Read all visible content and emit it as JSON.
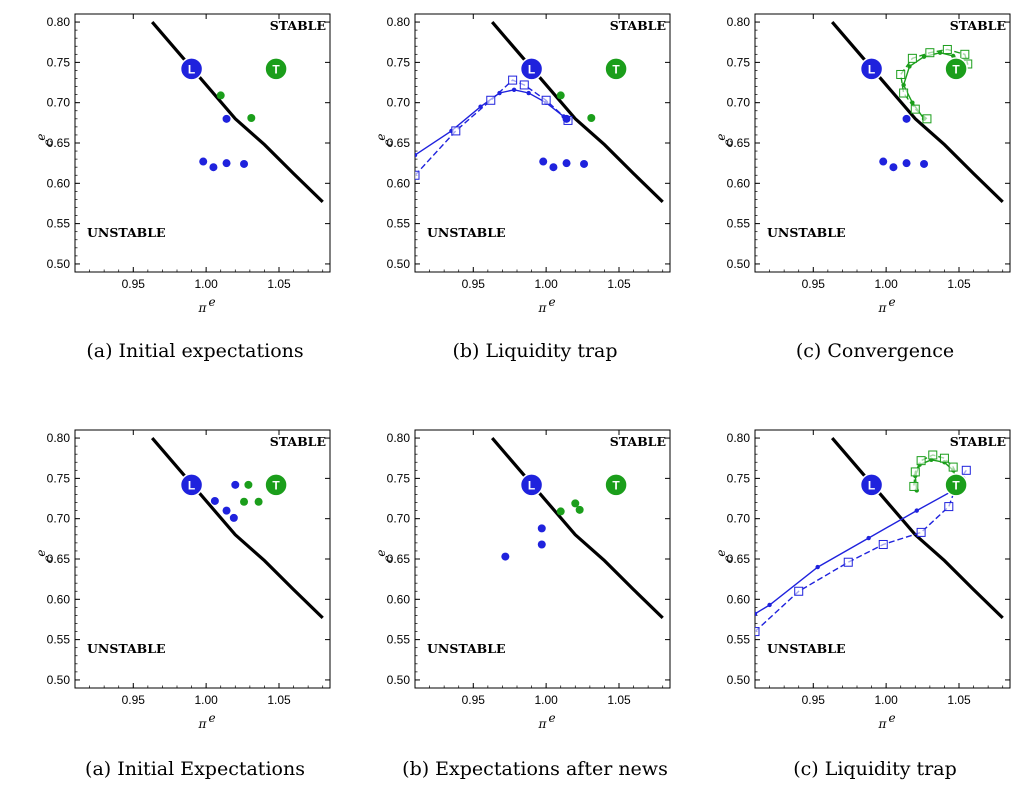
{
  "chart_data": [
    {
      "type": "scatter",
      "caption": "(a) Initial expectations",
      "xlabel": "π^e",
      "ylabel": "c^e",
      "xlim": [
        0.91,
        1.085
      ],
      "ylim": [
        0.49,
        0.81
      ],
      "xticks": [
        "0.95",
        "1.00",
        "1.05"
      ],
      "yticks": [
        "0.50",
        "0.55",
        "0.60",
        "0.65",
        "0.70",
        "0.75",
        "0.80"
      ],
      "region_labels": {
        "stable": "STABLE",
        "unstable": "UNSTABLE"
      },
      "boundary": [
        [
          0.963,
          0.8
        ],
        [
          1.02,
          0.68
        ],
        [
          1.04,
          0.648
        ],
        [
          1.06,
          0.612
        ],
        [
          1.08,
          0.577
        ]
      ],
      "markers": [
        {
          "label": "L",
          "x": 0.99,
          "y": 0.742,
          "color": "#1f22dd"
        },
        {
          "label": "T",
          "x": 1.048,
          "y": 0.742,
          "color": "#1b9e1b"
        }
      ],
      "points_blue": [
        [
          0.998,
          0.627
        ],
        [
          1.005,
          0.62
        ],
        [
          1.014,
          0.625
        ],
        [
          1.026,
          0.624
        ],
        [
          1.014,
          0.68
        ]
      ],
      "points_green": [
        [
          1.01,
          0.709
        ],
        [
          1.031,
          0.681
        ]
      ],
      "paths": []
    },
    {
      "type": "scatter",
      "caption": "(b) Liquidity trap",
      "xlabel": "π^e",
      "ylabel": "c^e",
      "xlim": [
        0.91,
        1.085
      ],
      "ylim": [
        0.49,
        0.81
      ],
      "xticks": [
        "0.95",
        "1.00",
        "1.05"
      ],
      "yticks": [
        "0.50",
        "0.55",
        "0.60",
        "0.65",
        "0.70",
        "0.75",
        "0.80"
      ],
      "region_labels": {
        "stable": "STABLE",
        "unstable": "UNSTABLE"
      },
      "boundary": [
        [
          0.963,
          0.8
        ],
        [
          1.02,
          0.68
        ],
        [
          1.04,
          0.648
        ],
        [
          1.06,
          0.612
        ],
        [
          1.08,
          0.577
        ]
      ],
      "markers": [
        {
          "label": "L",
          "x": 0.99,
          "y": 0.742,
          "color": "#1f22dd"
        },
        {
          "label": "T",
          "x": 1.048,
          "y": 0.742,
          "color": "#1b9e1b"
        }
      ],
      "points_blue": [
        [
          0.998,
          0.627
        ],
        [
          1.005,
          0.62
        ],
        [
          1.014,
          0.625
        ],
        [
          1.026,
          0.624
        ],
        [
          1.014,
          0.68
        ]
      ],
      "points_green": [
        [
          1.01,
          0.709
        ],
        [
          1.031,
          0.681
        ]
      ],
      "paths": [
        {
          "color": "#1f22dd",
          "dashed": false,
          "marker": "dot",
          "points": [
            [
              0.91,
              0.635
            ],
            [
              0.935,
              0.665
            ],
            [
              0.955,
              0.695
            ],
            [
              0.968,
              0.712
            ],
            [
              0.978,
              0.716
            ],
            [
              0.988,
              0.712
            ],
            [
              1.0,
              0.7
            ],
            [
              1.012,
              0.683
            ]
          ]
        },
        {
          "color": "#1f22dd",
          "dashed": true,
          "marker": "square",
          "points": [
            [
              0.91,
              0.61
            ],
            [
              0.938,
              0.665
            ],
            [
              0.962,
              0.703
            ],
            [
              0.977,
              0.728
            ],
            [
              0.985,
              0.722
            ],
            [
              1.0,
              0.703
            ],
            [
              1.015,
              0.678
            ]
          ]
        }
      ]
    },
    {
      "type": "scatter",
      "caption": "(c) Convergence",
      "xlabel": "π^e",
      "ylabel": "c^e",
      "xlim": [
        0.91,
        1.085
      ],
      "ylim": [
        0.49,
        0.81
      ],
      "xticks": [
        "0.95",
        "1.00",
        "1.05"
      ],
      "yticks": [
        "0.50",
        "0.55",
        "0.60",
        "0.65",
        "0.70",
        "0.75",
        "0.80"
      ],
      "region_labels": {
        "stable": "STABLE",
        "unstable": "UNSTABLE"
      },
      "boundary": [
        [
          0.963,
          0.8
        ],
        [
          1.02,
          0.68
        ],
        [
          1.04,
          0.648
        ],
        [
          1.06,
          0.612
        ],
        [
          1.08,
          0.577
        ]
      ],
      "markers": [
        {
          "label": "L",
          "x": 0.99,
          "y": 0.742,
          "color": "#1f22dd"
        },
        {
          "label": "T",
          "x": 1.048,
          "y": 0.742,
          "color": "#1b9e1b"
        }
      ],
      "points_blue": [
        [
          0.998,
          0.627
        ],
        [
          1.005,
          0.62
        ],
        [
          1.014,
          0.625
        ],
        [
          1.026,
          0.624
        ],
        [
          1.014,
          0.68
        ]
      ],
      "points_green": [],
      "paths": [
        {
          "color": "#1b9e1b",
          "dashed": false,
          "marker": "dot",
          "points": [
            [
              1.026,
              0.68
            ],
            [
              1.018,
              0.7
            ],
            [
              1.012,
              0.722
            ],
            [
              1.016,
              0.745
            ],
            [
              1.026,
              0.757
            ],
            [
              1.037,
              0.762
            ],
            [
              1.046,
              0.758
            ],
            [
              1.052,
              0.751
            ],
            [
              1.049,
              0.743
            ]
          ]
        },
        {
          "color": "#1b9e1b",
          "dashed": true,
          "marker": "square",
          "points": [
            [
              1.028,
              0.68
            ],
            [
              1.02,
              0.692
            ],
            [
              1.012,
              0.712
            ],
            [
              1.01,
              0.735
            ],
            [
              1.018,
              0.755
            ],
            [
              1.03,
              0.762
            ],
            [
              1.042,
              0.766
            ],
            [
              1.054,
              0.76
            ],
            [
              1.056,
              0.748
            ],
            [
              1.048,
              0.742
            ]
          ]
        }
      ]
    },
    {
      "type": "scatter",
      "caption": "(a) Initial Expectations",
      "xlabel": "π^e",
      "ylabel": "c^e",
      "xlim": [
        0.91,
        1.085
      ],
      "ylim": [
        0.49,
        0.81
      ],
      "xticks": [
        "0.95",
        "1.00",
        "1.05"
      ],
      "yticks": [
        "0.50",
        "0.55",
        "0.60",
        "0.65",
        "0.70",
        "0.75",
        "0.80"
      ],
      "region_labels": {
        "stable": "STABLE",
        "unstable": "UNSTABLE"
      },
      "boundary": [
        [
          0.963,
          0.8
        ],
        [
          1.02,
          0.68
        ],
        [
          1.04,
          0.648
        ],
        [
          1.06,
          0.612
        ],
        [
          1.08,
          0.577
        ]
      ],
      "markers": [
        {
          "label": "L",
          "x": 0.99,
          "y": 0.742,
          "color": "#1f22dd"
        },
        {
          "label": "T",
          "x": 1.048,
          "y": 0.742,
          "color": "#1b9e1b"
        }
      ],
      "points_blue": [
        [
          1.006,
          0.722
        ],
        [
          1.014,
          0.71
        ],
        [
          1.019,
          0.701
        ],
        [
          1.02,
          0.742
        ]
      ],
      "points_green": [
        [
          1.026,
          0.721
        ],
        [
          1.029,
          0.742
        ],
        [
          1.036,
          0.721
        ]
      ],
      "paths": []
    },
    {
      "type": "scatter",
      "caption": "(b) Expectations after news",
      "xlabel": "π^e",
      "ylabel": "c^e",
      "xlim": [
        0.91,
        1.085
      ],
      "ylim": [
        0.49,
        0.81
      ],
      "xticks": [
        "0.95",
        "1.00",
        "1.05"
      ],
      "yticks": [
        "0.50",
        "0.55",
        "0.60",
        "0.65",
        "0.70",
        "0.75",
        "0.80"
      ],
      "region_labels": {
        "stable": "STABLE",
        "unstable": "UNSTABLE"
      },
      "boundary": [
        [
          0.963,
          0.8
        ],
        [
          1.02,
          0.68
        ],
        [
          1.04,
          0.648
        ],
        [
          1.06,
          0.612
        ],
        [
          1.08,
          0.577
        ]
      ],
      "markers": [
        {
          "label": "L",
          "x": 0.99,
          "y": 0.742,
          "color": "#1f22dd"
        },
        {
          "label": "T",
          "x": 1.048,
          "y": 0.742,
          "color": "#1b9e1b"
        }
      ],
      "points_blue": [
        [
          0.972,
          0.653
        ],
        [
          0.997,
          0.688
        ],
        [
          0.997,
          0.668
        ]
      ],
      "points_green": [
        [
          1.01,
          0.709
        ],
        [
          1.02,
          0.719
        ],
        [
          1.023,
          0.711
        ]
      ],
      "paths": []
    },
    {
      "type": "scatter",
      "caption": "(c) Liquidity trap",
      "xlabel": "π^e",
      "ylabel": "c^e",
      "xlim": [
        0.91,
        1.085
      ],
      "ylim": [
        0.49,
        0.81
      ],
      "xticks": [
        "0.95",
        "1.00",
        "1.05"
      ],
      "yticks": [
        "0.50",
        "0.55",
        "0.60",
        "0.65",
        "0.70",
        "0.75",
        "0.80"
      ],
      "region_labels": {
        "stable": "STABLE",
        "unstable": "UNSTABLE"
      },
      "boundary": [
        [
          0.963,
          0.8
        ],
        [
          1.02,
          0.68
        ],
        [
          1.04,
          0.648
        ],
        [
          1.06,
          0.612
        ],
        [
          1.08,
          0.577
        ]
      ],
      "markers": [
        {
          "label": "L",
          "x": 0.99,
          "y": 0.742,
          "color": "#1f22dd"
        },
        {
          "label": "T",
          "x": 1.048,
          "y": 0.742,
          "color": "#1b9e1b"
        }
      ],
      "points_blue": [],
      "points_green": [],
      "paths": [
        {
          "color": "#1f22dd",
          "dashed": false,
          "marker": "dot",
          "points": [
            [
              0.91,
              0.582
            ],
            [
              0.92,
              0.593
            ],
            [
              0.953,
              0.64
            ],
            [
              0.988,
              0.676
            ],
            [
              1.021,
              0.71
            ],
            [
              1.047,
              0.736
            ],
            [
              1.053,
              0.75
            ]
          ]
        },
        {
          "color": "#1f22dd",
          "dashed": true,
          "marker": "square",
          "points": [
            [
              0.91,
              0.56
            ],
            [
              0.94,
              0.61
            ],
            [
              0.974,
              0.646
            ],
            [
              0.998,
              0.668
            ],
            [
              1.024,
              0.683
            ],
            [
              1.043,
              0.715
            ],
            [
              1.049,
              0.745
            ],
            [
              1.055,
              0.76
            ]
          ]
        },
        {
          "color": "#1b9e1b",
          "dashed": false,
          "marker": "dot",
          "points": [
            [
              1.049,
              0.745
            ],
            [
              1.046,
              0.76
            ],
            [
              1.04,
              0.77
            ],
            [
              1.031,
              0.773
            ],
            [
              1.023,
              0.767
            ],
            [
              1.02,
              0.753
            ],
            [
              1.021,
              0.735
            ]
          ]
        },
        {
          "color": "#1b9e1b",
          "dashed": true,
          "marker": "square",
          "points": [
            [
              1.05,
              0.748
            ],
            [
              1.046,
              0.764
            ],
            [
              1.04,
              0.775
            ],
            [
              1.032,
              0.779
            ],
            [
              1.024,
              0.772
            ],
            [
              1.02,
              0.758
            ],
            [
              1.019,
              0.74
            ]
          ]
        }
      ]
    }
  ]
}
